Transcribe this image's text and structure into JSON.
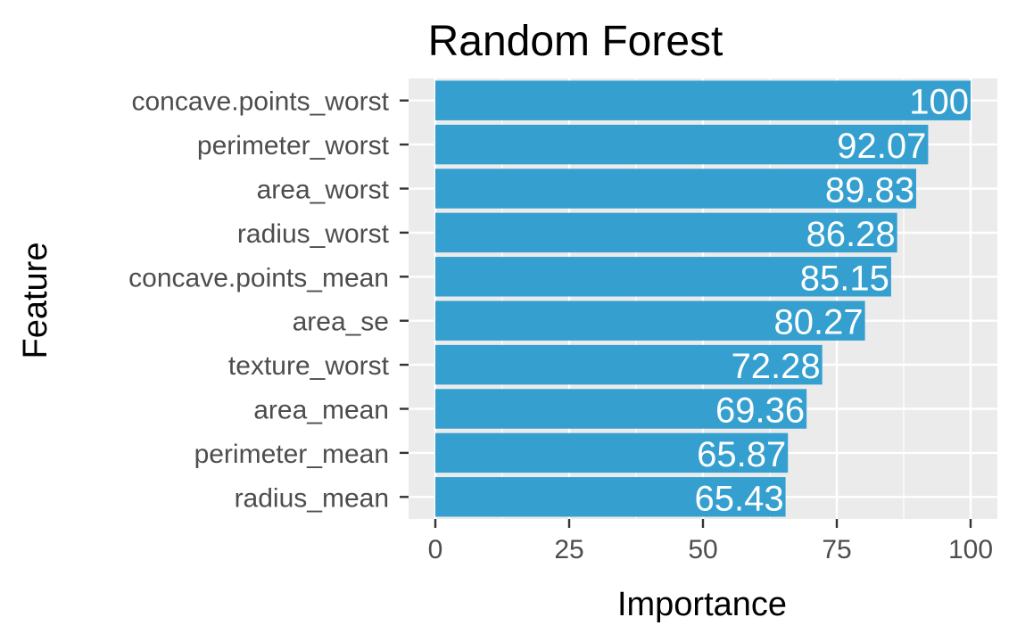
{
  "chart_data": {
    "type": "bar",
    "orientation": "horizontal",
    "title": "Random Forest",
    "xlabel": "Importance",
    "ylabel": "Feature",
    "categories": [
      "concave.points_worst",
      "perimeter_worst",
      "area_worst",
      "radius_worst",
      "concave.points_mean",
      "area_se",
      "texture_worst",
      "area_mean",
      "perimeter_mean",
      "radius_mean"
    ],
    "values": [
      100,
      92.07,
      89.83,
      86.28,
      85.15,
      80.27,
      72.28,
      69.36,
      65.87,
      65.43
    ],
    "data_labels": [
      "100",
      "92.07",
      "89.83",
      "86.28",
      "85.15",
      "80.27",
      "72.28",
      "69.36",
      "65.87",
      "65.43"
    ],
    "xticks": [
      0,
      25,
      50,
      75,
      100
    ],
    "xtick_labels": [
      "0",
      "25",
      "50",
      "75",
      "100"
    ],
    "xlim": [
      -5,
      105
    ],
    "grid": true,
    "legend": "none",
    "colors": {
      "bar": "#35A0D0",
      "panel": "#EBEBEB",
      "grid": "#FFFFFF",
      "tick_text": "#4D4D4D",
      "title_text": "#000000",
      "bar_label_text": "#FFFFFF"
    }
  }
}
